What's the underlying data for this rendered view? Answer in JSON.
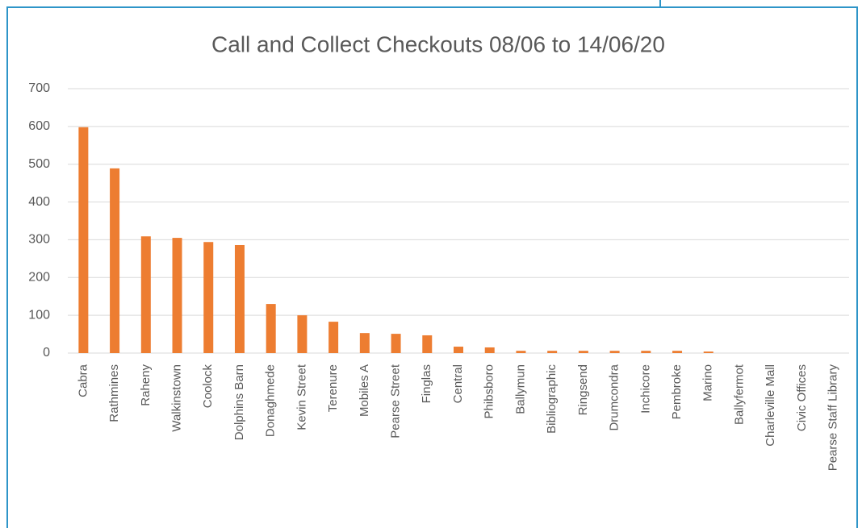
{
  "chart_data": {
    "type": "bar",
    "title": "Call and Collect Checkouts  08/06 to 14/06/20",
    "categories": [
      "Cabra",
      "Rathmines",
      "Raheny",
      "Walkinstown",
      "Coolock",
      "Dolphins Barn",
      "Donaghmede",
      "Kevin Street",
      "Terenure",
      "Mobiles A",
      "Pearse Street",
      "Finglas",
      "Central",
      "Phibsboro",
      "Ballymun",
      "Bibliographic",
      "Ringsend",
      "Drumcondra",
      "Inchicore",
      "Pembroke",
      "Marino",
      "Ballyfermot",
      "Charleville Mall",
      "Civic Offices",
      "Pearse Staff Library"
    ],
    "values": [
      598,
      489,
      309,
      305,
      294,
      286,
      130,
      100,
      83,
      53,
      51,
      47,
      17,
      15,
      6,
      6,
      6,
      6,
      6,
      6,
      4,
      0,
      0,
      0,
      0
    ],
    "color": "#ed7d31",
    "ylim": [
      0,
      700
    ],
    "yticks": [
      0,
      100,
      200,
      300,
      400,
      500,
      600,
      700
    ],
    "grid": true
  }
}
